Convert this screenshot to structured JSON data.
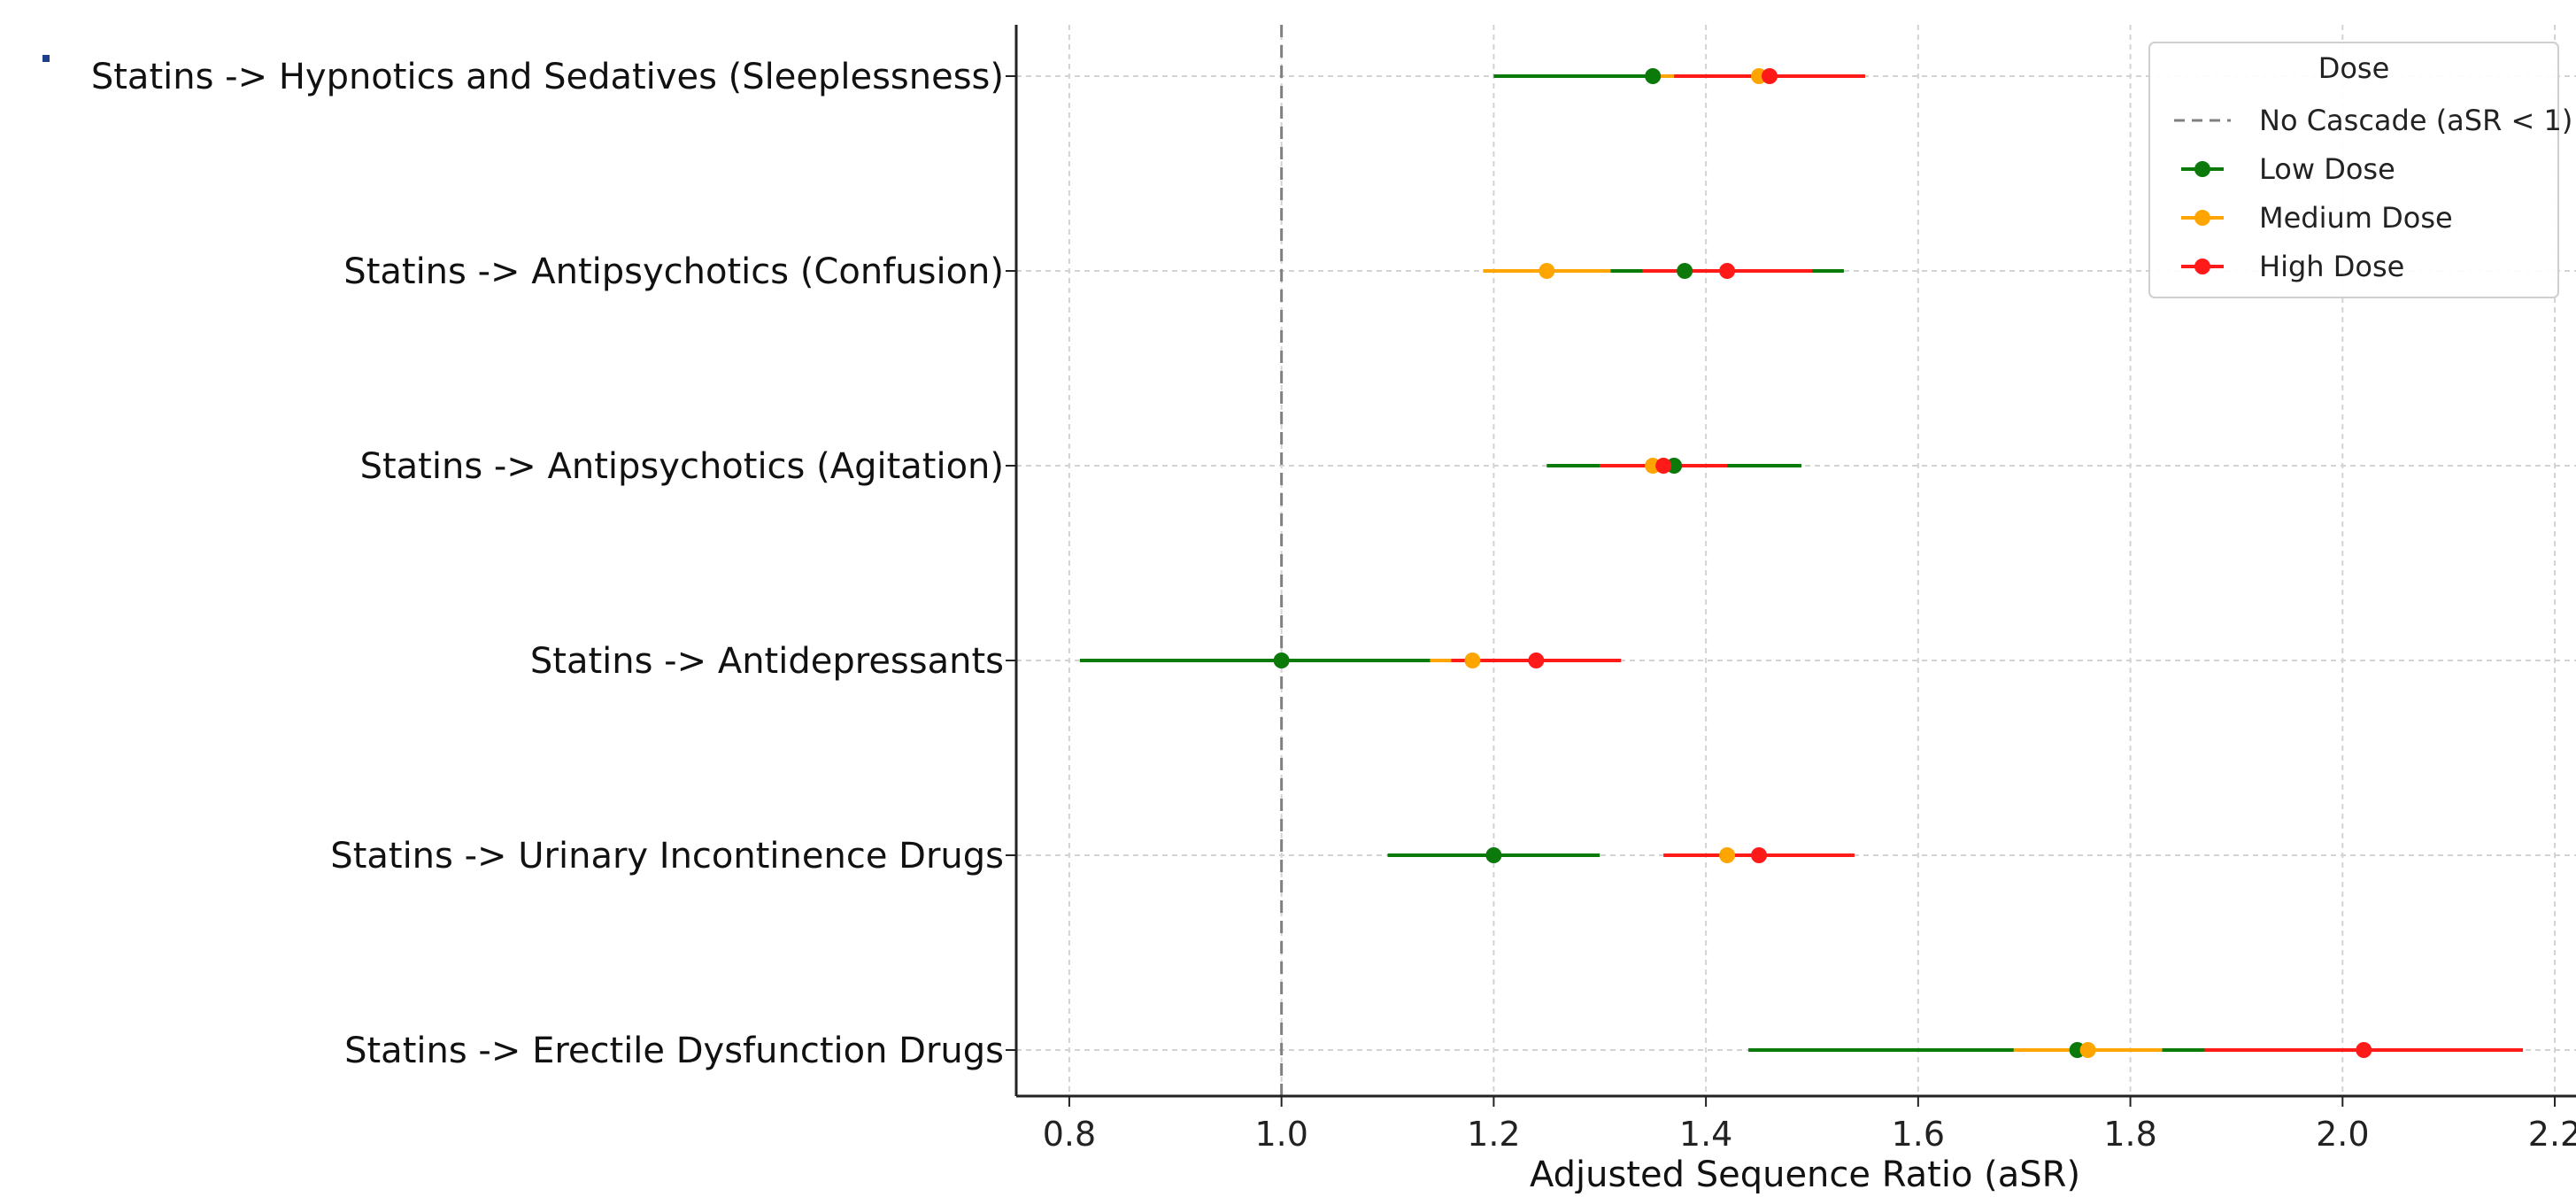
{
  "chart_data": {
    "type": "scatter",
    "subtype": "forest-plot",
    "title": "",
    "xlabel": "Adjusted Sequence Ratio (aSR)",
    "ylabel": "",
    "xlim": [
      0.75,
      2.22
    ],
    "xticks": [
      0.8,
      1.0,
      1.2,
      1.4,
      1.6,
      1.8,
      2.0,
      2.2
    ],
    "xtick_labels": [
      "0.8",
      "1.0",
      "1.2",
      "1.4",
      "1.6",
      "1.8",
      "2.0",
      "2.2"
    ],
    "grid": true,
    "reference_line": {
      "x": 1.0,
      "style": "dashed",
      "color": "#808080"
    },
    "categories": [
      "Statins -> Hypnotics and Sedatives (Sleeplessness)",
      "Statins -> Antipsychotics (Confusion)",
      "Statins -> Antipsychotics (Agitation)",
      "Statins -> Antidepressants",
      "Statins -> Urinary Incontinence Drugs",
      "Statins -> Erectile Dysfunction Drugs"
    ],
    "series": [
      {
        "name": "Low Dose",
        "color": "#0b7a0b",
        "points": [
          {
            "estimate": 1.35,
            "lower": 1.2,
            "upper": 1.5
          },
          {
            "estimate": 1.38,
            "lower": 1.31,
            "upper": 1.53
          },
          {
            "estimate": 1.37,
            "lower": 1.25,
            "upper": 1.49
          },
          {
            "estimate": 1.0,
            "lower": 0.81,
            "upper": 1.14
          },
          {
            "estimate": 1.2,
            "lower": 1.1,
            "upper": 1.3
          },
          {
            "estimate": 1.75,
            "lower": 1.44,
            "upper": 1.87
          }
        ]
      },
      {
        "name": "Medium Dose",
        "color": "#ffa500",
        "points": [
          {
            "estimate": 1.45,
            "lower": 1.35,
            "upper": 1.55
          },
          {
            "estimate": 1.25,
            "lower": 1.19,
            "upper": 1.31
          },
          {
            "estimate": 1.35,
            "lower": 1.3,
            "upper": 1.4
          },
          {
            "estimate": 1.18,
            "lower": 1.14,
            "upper": 1.22
          },
          {
            "estimate": 1.42,
            "lower": 1.38,
            "upper": 1.46
          },
          {
            "estimate": 1.76,
            "lower": 1.69,
            "upper": 1.83
          }
        ]
      },
      {
        "name": "High Dose",
        "color": "#ff1a1a",
        "points": [
          {
            "estimate": 1.46,
            "lower": 1.37,
            "upper": 1.55
          },
          {
            "estimate": 1.42,
            "lower": 1.34,
            "upper": 1.5
          },
          {
            "estimate": 1.36,
            "lower": 1.3,
            "upper": 1.42
          },
          {
            "estimate": 1.24,
            "lower": 1.16,
            "upper": 1.32
          },
          {
            "estimate": 1.45,
            "lower": 1.36,
            "upper": 1.54
          },
          {
            "estimate": 2.02,
            "lower": 1.87,
            "upper": 2.17
          }
        ]
      }
    ],
    "legend": {
      "title": "Dose",
      "placement": "top-right",
      "entries": [
        {
          "label": "No Cascade (aSR < 1)",
          "kind": "dashed-line",
          "color": "#808080"
        },
        {
          "label": "Low Dose",
          "kind": "marker",
          "color": "#0b7a0b"
        },
        {
          "label": "Medium Dose",
          "kind": "marker",
          "color": "#ffa500"
        },
        {
          "label": "High Dose",
          "kind": "marker",
          "color": "#ff1a1a"
        }
      ]
    }
  }
}
